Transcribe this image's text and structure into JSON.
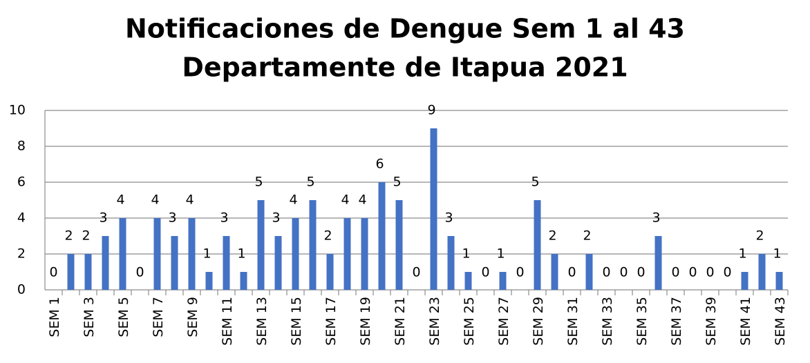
{
  "chart_data": {
    "type": "bar",
    "title": [
      "Notificaciones de Dengue Sem 1 al 43",
      "Departamente de Itapua 2021"
    ],
    "categories": [
      "SEM 1",
      null,
      "SEM 3",
      null,
      "SEM 5",
      null,
      "SEM 7",
      null,
      "SEM 9",
      null,
      "SEM 11",
      null,
      "SEM 13",
      null,
      "SEM 15",
      null,
      "SEM 17",
      null,
      "SEM 19",
      null,
      "SEM 21",
      null,
      "SEM 23",
      null,
      "SEM 25",
      null,
      "SEM 27",
      null,
      "SEM 29",
      null,
      "SEM 31",
      null,
      "SEM 33",
      null,
      "SEM 35",
      null,
      "SEM 37",
      null,
      "SEM 39",
      null,
      "SEM 41",
      null,
      "SEM 43"
    ],
    "values": [
      0,
      2,
      2,
      3,
      4,
      0,
      4,
      3,
      4,
      1,
      3,
      1,
      5,
      3,
      4,
      5,
      2,
      4,
      4,
      6,
      5,
      0,
      9,
      3,
      1,
      0,
      1,
      0,
      5,
      2,
      0,
      2,
      0,
      0,
      0,
      3,
      0,
      0,
      0,
      0,
      1,
      2,
      1
    ],
    "color": "#4472c4",
    "ylim": [
      0,
      10
    ],
    "yticks": [
      0,
      2,
      4,
      6,
      8,
      10
    ],
    "grid": true
  }
}
